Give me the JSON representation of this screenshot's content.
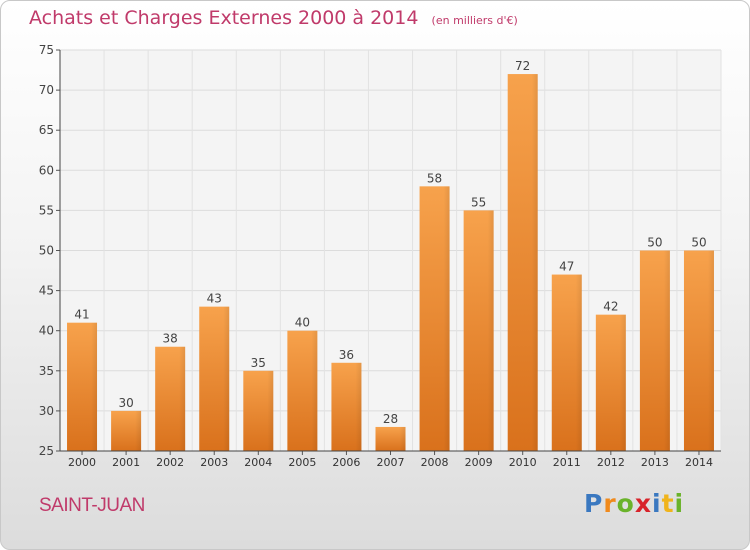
{
  "chart_data": {
    "type": "bar",
    "title": "Achats et Charges Externes 2000 à 2014",
    "unit": "(en milliers d'€)",
    "categories": [
      "2000",
      "2001",
      "2002",
      "2003",
      "2004",
      "2005",
      "2006",
      "2007",
      "2008",
      "2009",
      "2010",
      "2011",
      "2012",
      "2013",
      "2014"
    ],
    "values": [
      41,
      30,
      38,
      43,
      35,
      40,
      36,
      28,
      58,
      55,
      72,
      47,
      42,
      50,
      50
    ],
    "ylim": [
      25,
      75
    ],
    "yticks": [
      25,
      30,
      35,
      40,
      45,
      50,
      55,
      60,
      65,
      70,
      75
    ],
    "grid": true,
    "bar_color": "#f0923a"
  },
  "commune": "SAINT-JUAN",
  "logo": {
    "text": "Proxiti",
    "letters": [
      {
        "ch": "P",
        "color": "#3a78c0"
      },
      {
        "ch": "r",
        "color": "#f08a1c"
      },
      {
        "ch": "o",
        "color": "#6ab32a"
      },
      {
        "ch": "x",
        "color": "#d8232a"
      },
      {
        "ch": "i",
        "color": "#3a78c0"
      },
      {
        "ch": "t",
        "color": "#f0b41c"
      },
      {
        "ch": "i",
        "color": "#6ab32a"
      }
    ]
  }
}
